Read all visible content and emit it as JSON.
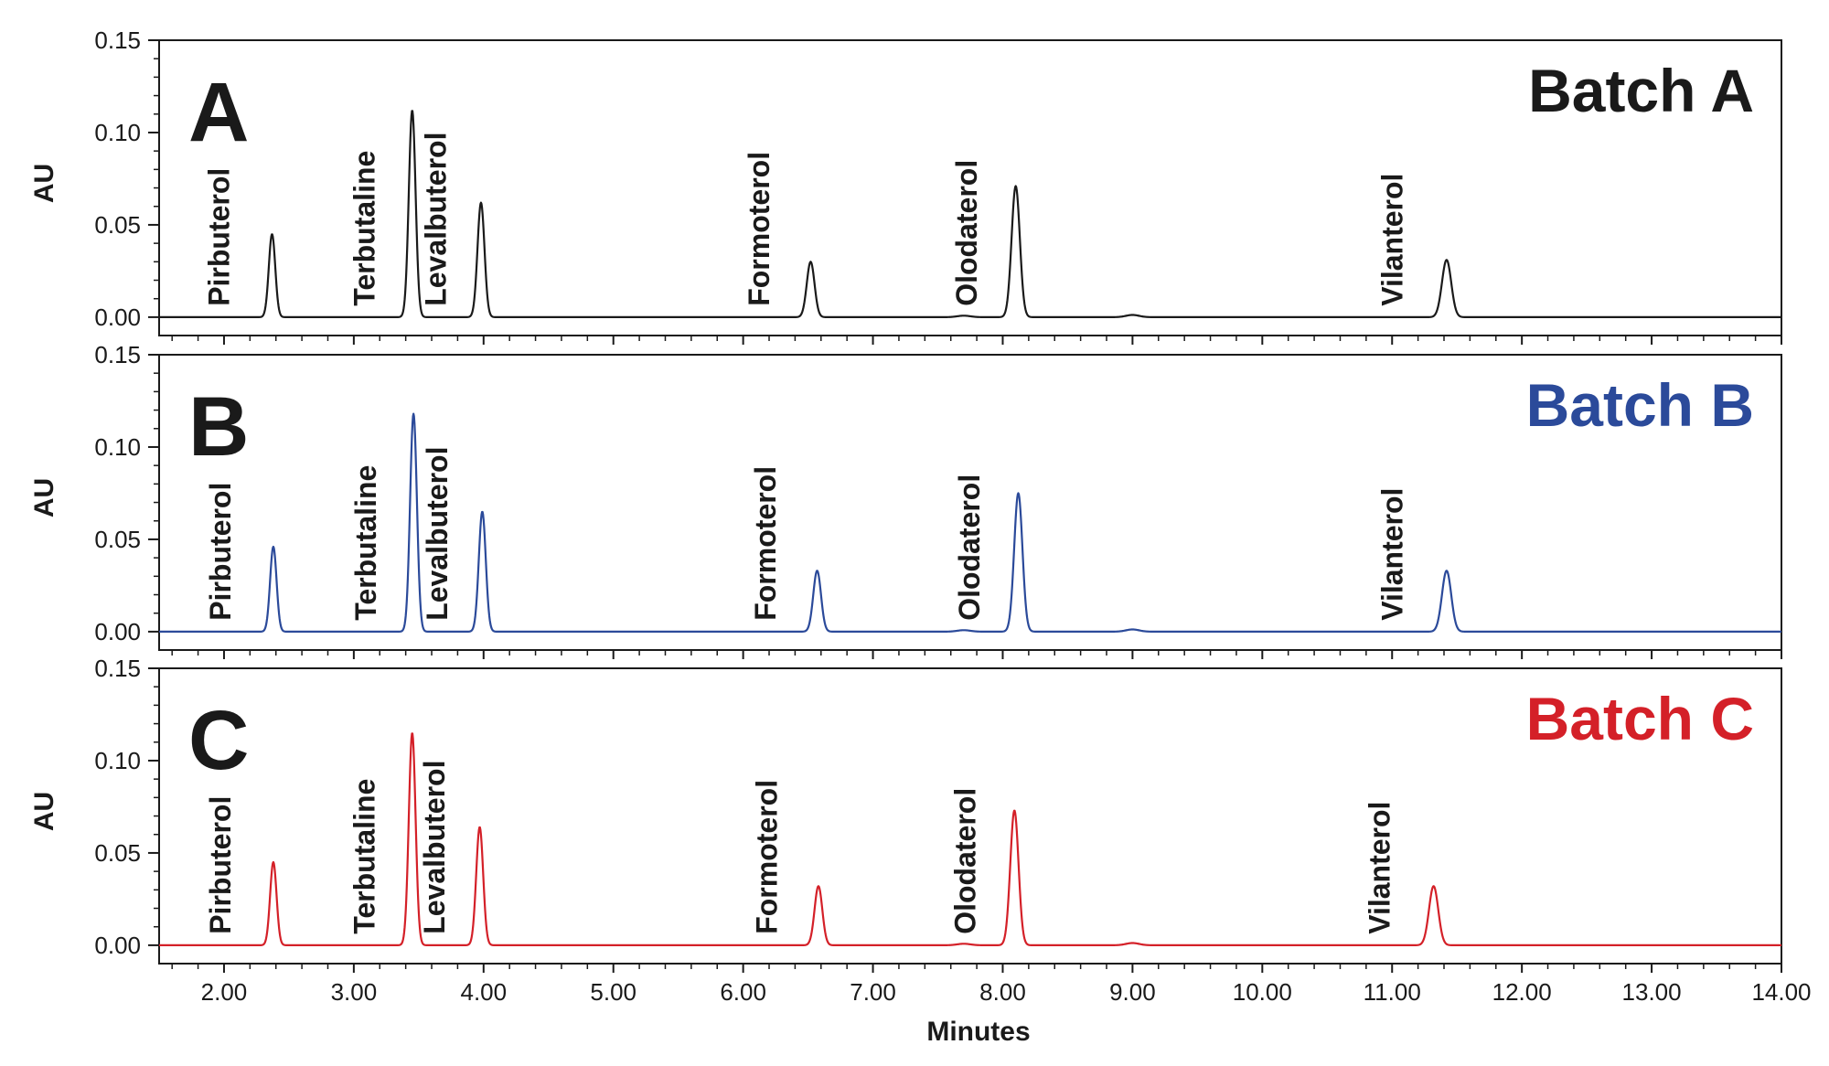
{
  "chart_data": {
    "type": "line",
    "xlabel": "Minutes",
    "ylabel": "AU",
    "xlim": [
      1.5,
      14.0
    ],
    "ylim": [
      -0.005,
      0.15
    ],
    "x_ticks": [
      2.0,
      3.0,
      4.0,
      5.0,
      6.0,
      7.0,
      8.0,
      9.0,
      10.0,
      11.0,
      12.0,
      13.0,
      14.0
    ],
    "x_tick_labels": [
      "2.00",
      "3.00",
      "4.00",
      "5.00",
      "6.00",
      "7.00",
      "8.00",
      "9.00",
      "10.00",
      "11.00",
      "12.00",
      "13.00",
      "14.00"
    ],
    "y_ticks": [
      0.0,
      0.05,
      0.1,
      0.15
    ],
    "y_tick_labels": [
      "0.00",
      "0.05",
      "0.10",
      "0.15"
    ],
    "grid": false,
    "panels": [
      {
        "letter": "A",
        "series_name": "Batch A",
        "color": "#1a1a1a",
        "peaks": [
          {
            "name": "Pirbuterol",
            "rt": 2.37,
            "height": 0.045
          },
          {
            "name": "Terbutaline",
            "rt": 3.45,
            "height": 0.112
          },
          {
            "name": "Levalbuterol",
            "rt": 3.98,
            "height": 0.062
          },
          {
            "name": "Formoterol",
            "rt": 6.52,
            "height": 0.03
          },
          {
            "name": "Olodaterol",
            "rt": 8.1,
            "height": 0.071
          },
          {
            "name": "Vilanterol",
            "rt": 11.42,
            "height": 0.031
          }
        ]
      },
      {
        "letter": "B",
        "series_name": "Batch B",
        "color": "#2b4a9a",
        "peaks": [
          {
            "name": "Pirbuterol",
            "rt": 2.38,
            "height": 0.046
          },
          {
            "name": "Terbutaline",
            "rt": 3.46,
            "height": 0.118
          },
          {
            "name": "Levalbuterol",
            "rt": 3.99,
            "height": 0.065
          },
          {
            "name": "Formoterol",
            "rt": 6.57,
            "height": 0.033
          },
          {
            "name": "Olodaterol",
            "rt": 8.12,
            "height": 0.075
          },
          {
            "name": "Vilanterol",
            "rt": 11.42,
            "height": 0.033
          }
        ]
      },
      {
        "letter": "C",
        "series_name": "Batch C",
        "color": "#d42028",
        "peaks": [
          {
            "name": "Pirbuterol",
            "rt": 2.38,
            "height": 0.045
          },
          {
            "name": "Terbutaline",
            "rt": 3.45,
            "height": 0.115
          },
          {
            "name": "Levalbuterol",
            "rt": 3.97,
            "height": 0.064
          },
          {
            "name": "Formoterol",
            "rt": 6.58,
            "height": 0.032
          },
          {
            "name": "Olodaterol",
            "rt": 8.09,
            "height": 0.073
          },
          {
            "name": "Vilanterol",
            "rt": 11.32,
            "height": 0.032
          }
        ]
      }
    ]
  }
}
